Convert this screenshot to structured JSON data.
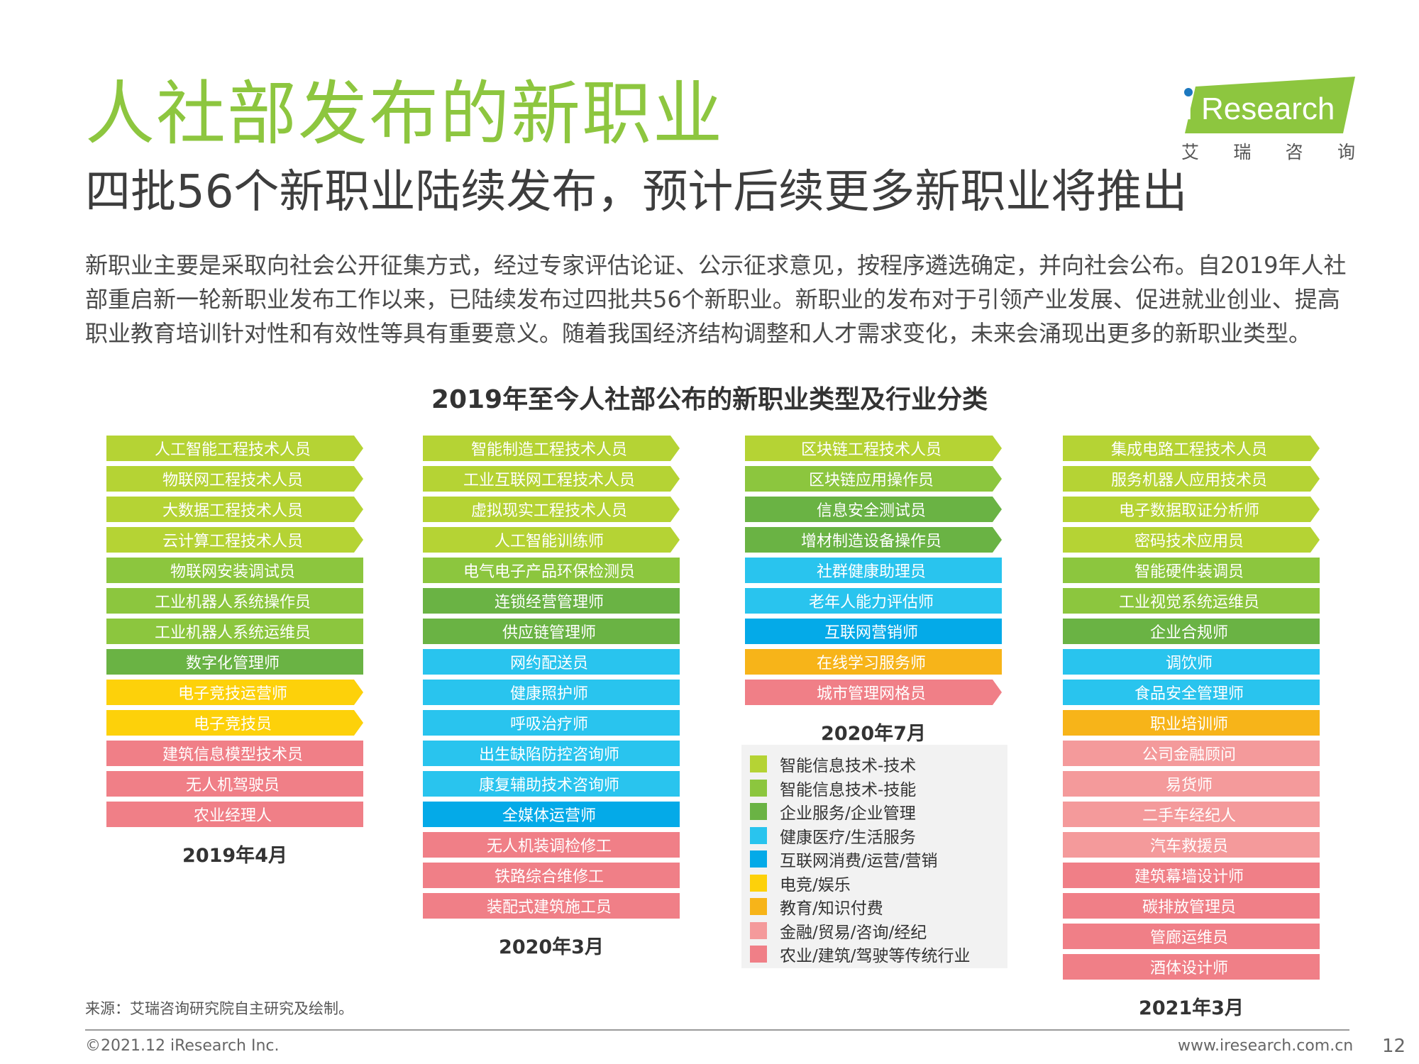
{
  "header": {
    "title": "人社部发布的新职业",
    "subtitle": "四批56个新职业陆续发布，预计后续更多新职业将推出",
    "paragraph": "新职业主要是采取向社会公开征集方式，经过专家评估论证、公示征求意见，按程序遴选确定，并向社会公布。自2019年人社部重启新一轮新职业发布工作以来，已陆续发布过四批共56个新职业。新职业的发布对于引领产业发展、促进就业创业、提高职业教育培训针对性和有效性等具有重要意义。随着我国经济结构调整和人才需求变化，未来会涌现出更多的新职业类型。"
  },
  "logo": {
    "i": "i",
    "word": "Research",
    "chars": [
      "艾",
      "瑞",
      "咨",
      "询"
    ]
  },
  "chart": {
    "title": "2019年至今人社部公布的新职业类型及行业分类"
  },
  "colors": {
    "tech": "#b5d334",
    "skill": "#8cc63e",
    "mgmt": "#6ab344",
    "health": "#29c4ee",
    "internet": "#04aae8",
    "esports": "#fdd10a",
    "edu": "#f7b419",
    "finance": "#f49a9b",
    "trad": "#f07f87"
  },
  "columns": [
    {
      "date": "2019年4月",
      "items": [
        {
          "label": "人工智能工程技术人员",
          "cat": "tech",
          "arrow": true
        },
        {
          "label": "物联网工程技术人员",
          "cat": "tech",
          "arrow": true
        },
        {
          "label": "大数据工程技术人员",
          "cat": "tech",
          "arrow": true
        },
        {
          "label": "云计算工程技术人员",
          "cat": "tech",
          "arrow": true
        },
        {
          "label": "物联网安装调试员",
          "cat": "skill",
          "arrow": false
        },
        {
          "label": "工业机器人系统操作员",
          "cat": "skill",
          "arrow": false
        },
        {
          "label": "工业机器人系统运维员",
          "cat": "skill",
          "arrow": false
        },
        {
          "label": "数字化管理师",
          "cat": "mgmt",
          "arrow": false
        },
        {
          "label": "电子竞技运营师",
          "cat": "esports",
          "arrow": true
        },
        {
          "label": "电子竞技员",
          "cat": "esports",
          "arrow": true
        },
        {
          "label": "建筑信息模型技术员",
          "cat": "trad",
          "arrow": false
        },
        {
          "label": "无人机驾驶员",
          "cat": "trad",
          "arrow": false
        },
        {
          "label": "农业经理人",
          "cat": "trad",
          "arrow": false
        }
      ]
    },
    {
      "date": "2020年3月",
      "items": [
        {
          "label": "智能制造工程技术人员",
          "cat": "tech",
          "arrow": true
        },
        {
          "label": "工业互联网工程技术人员",
          "cat": "tech",
          "arrow": true
        },
        {
          "label": "虚拟现实工程技术人员",
          "cat": "tech",
          "arrow": true
        },
        {
          "label": "人工智能训练师",
          "cat": "tech",
          "arrow": true
        },
        {
          "label": "电气电子产品环保检测员",
          "cat": "skill",
          "arrow": false
        },
        {
          "label": "连锁经营管理师",
          "cat": "mgmt",
          "arrow": false
        },
        {
          "label": "供应链管理师",
          "cat": "mgmt",
          "arrow": false
        },
        {
          "label": "网约配送员",
          "cat": "health",
          "arrow": false
        },
        {
          "label": "健康照护师",
          "cat": "health",
          "arrow": false
        },
        {
          "label": "呼吸治疗师",
          "cat": "health",
          "arrow": false
        },
        {
          "label": "出生缺陷防控咨询师",
          "cat": "health",
          "arrow": false
        },
        {
          "label": "康复辅助技术咨询师",
          "cat": "health",
          "arrow": false
        },
        {
          "label": "全媒体运营师",
          "cat": "internet",
          "arrow": false
        },
        {
          "label": "无人机装调检修工",
          "cat": "trad",
          "arrow": false
        },
        {
          "label": "铁路综合维修工",
          "cat": "trad",
          "arrow": false
        },
        {
          "label": "装配式建筑施工员",
          "cat": "trad",
          "arrow": false
        }
      ]
    },
    {
      "date": "2020年7月",
      "items": [
        {
          "label": "区块链工程技术人员",
          "cat": "tech",
          "arrow": true
        },
        {
          "label": "区块链应用操作员",
          "cat": "skill",
          "arrow": true
        },
        {
          "label": "信息安全测试员",
          "cat": "mgmt",
          "arrow": true
        },
        {
          "label": "增材制造设备操作员",
          "cat": "mgmt",
          "arrow": true
        },
        {
          "label": "社群健康助理员",
          "cat": "health",
          "arrow": false
        },
        {
          "label": "老年人能力评估师",
          "cat": "health",
          "arrow": false
        },
        {
          "label": "互联网营销师",
          "cat": "internet",
          "arrow": false
        },
        {
          "label": "在线学习服务师",
          "cat": "edu",
          "arrow": false
        },
        {
          "label": "城市管理网格员",
          "cat": "trad",
          "arrow": true
        }
      ]
    },
    {
      "date": "2021年3月",
      "items": [
        {
          "label": "集成电路工程技术人员",
          "cat": "tech",
          "arrow": true
        },
        {
          "label": "服务机器人应用技术员",
          "cat": "tech",
          "arrow": true
        },
        {
          "label": "电子数据取证分析师",
          "cat": "tech",
          "arrow": true
        },
        {
          "label": "密码技术应用员",
          "cat": "tech",
          "arrow": true
        },
        {
          "label": "智能硬件装调员",
          "cat": "skill",
          "arrow": false
        },
        {
          "label": "工业视觉系统运维员",
          "cat": "skill",
          "arrow": false
        },
        {
          "label": "企业合规师",
          "cat": "mgmt",
          "arrow": false
        },
        {
          "label": "调饮师",
          "cat": "health",
          "arrow": false
        },
        {
          "label": "食品安全管理师",
          "cat": "health",
          "arrow": false
        },
        {
          "label": "职业培训师",
          "cat": "edu",
          "arrow": false
        },
        {
          "label": "公司金融顾问",
          "cat": "finance",
          "arrow": false
        },
        {
          "label": "易货师",
          "cat": "finance",
          "arrow": false
        },
        {
          "label": "二手车经纪人",
          "cat": "finance",
          "arrow": false
        },
        {
          "label": "汽车救援员",
          "cat": "finance",
          "arrow": false
        },
        {
          "label": "建筑幕墙设计师",
          "cat": "trad",
          "arrow": false
        },
        {
          "label": "碳排放管理员",
          "cat": "trad",
          "arrow": false
        },
        {
          "label": "管廊运维员",
          "cat": "trad",
          "arrow": false
        },
        {
          "label": "酒体设计师",
          "cat": "trad",
          "arrow": false
        }
      ]
    }
  ],
  "legend": [
    {
      "label": "智能信息技术-技术",
      "cat": "tech"
    },
    {
      "label": "智能信息技术-技能",
      "cat": "skill"
    },
    {
      "label": "企业服务/企业管理",
      "cat": "mgmt"
    },
    {
      "label": "健康医疗/生活服务",
      "cat": "health"
    },
    {
      "label": "互联网消费/运营/营销",
      "cat": "internet"
    },
    {
      "label": "电竞/娱乐",
      "cat": "esports"
    },
    {
      "label": "教育/知识付费",
      "cat": "edu"
    },
    {
      "label": "金融/贸易/咨询/经纪",
      "cat": "finance"
    },
    {
      "label": "农业/建筑/驾驶等传统行业",
      "cat": "trad"
    }
  ],
  "footer": {
    "source": "来源：艾瑞咨询研究院自主研究及绘制。",
    "copyright": "©2021.12 iResearch Inc.",
    "url": "www.iresearch.com.cn",
    "page": "12"
  }
}
